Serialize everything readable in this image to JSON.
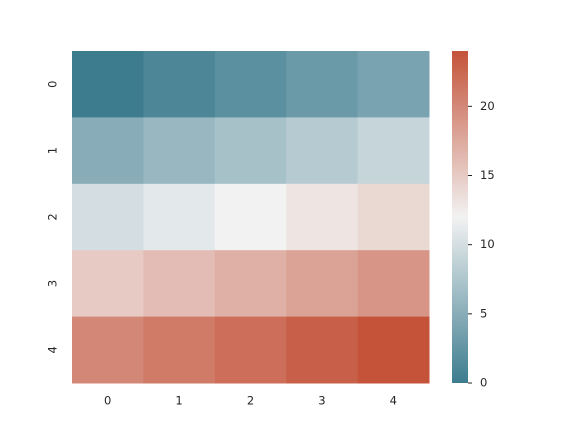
{
  "chart_data": {
    "type": "heatmap",
    "x_categories": [
      "0",
      "1",
      "2",
      "3",
      "4"
    ],
    "y_categories": [
      "0",
      "1",
      "2",
      "3",
      "4"
    ],
    "values": [
      [
        0,
        1,
        2,
        3,
        4
      ],
      [
        5,
        6,
        7,
        8,
        9
      ],
      [
        10,
        11,
        12,
        13,
        14
      ],
      [
        15,
        16,
        17,
        18,
        19
      ],
      [
        20,
        21,
        22,
        23,
        24
      ]
    ],
    "clim": [
      0,
      24
    ],
    "cticks": [
      0,
      5,
      10,
      15,
      20
    ],
    "colormap": [
      "#3d7c8f",
      "#f2f2f2",
      "#c4533a"
    ]
  }
}
